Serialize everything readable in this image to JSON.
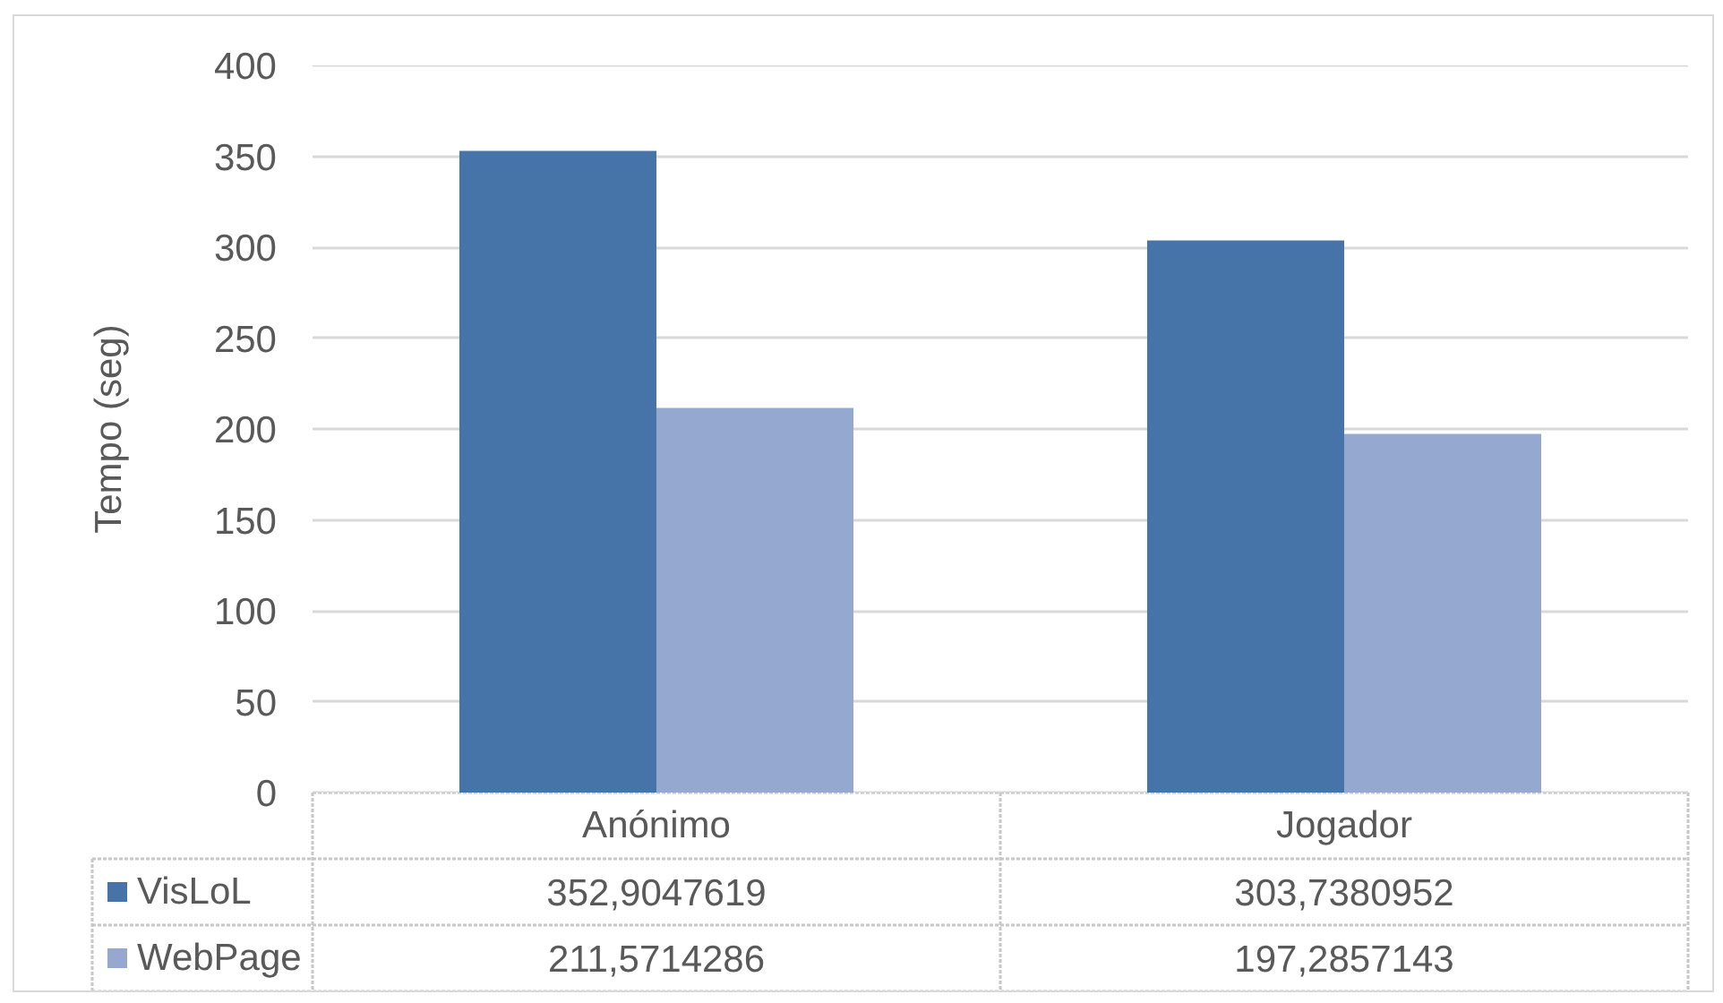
{
  "chart_data": {
    "type": "bar",
    "ylabel": "Tempo (seg)",
    "categories": [
      "Anónimo",
      "Jogador"
    ],
    "series": [
      {
        "name": "VisLoL",
        "color": "#4674a8",
        "values": [
          352.9047619,
          303.7380952
        ],
        "value_labels": [
          "352,9047619",
          "303,7380952"
        ]
      },
      {
        "name": "WebPage",
        "color": "#95a9d0",
        "values": [
          211.5714286,
          197.2857143
        ],
        "value_labels": [
          "211,5714286",
          "197,2857143"
        ]
      }
    ],
    "ylim": [
      0,
      400
    ],
    "yticks": [
      0,
      50,
      100,
      150,
      200,
      250,
      300,
      350,
      400
    ],
    "grid": "y",
    "legend": "bottom left"
  }
}
